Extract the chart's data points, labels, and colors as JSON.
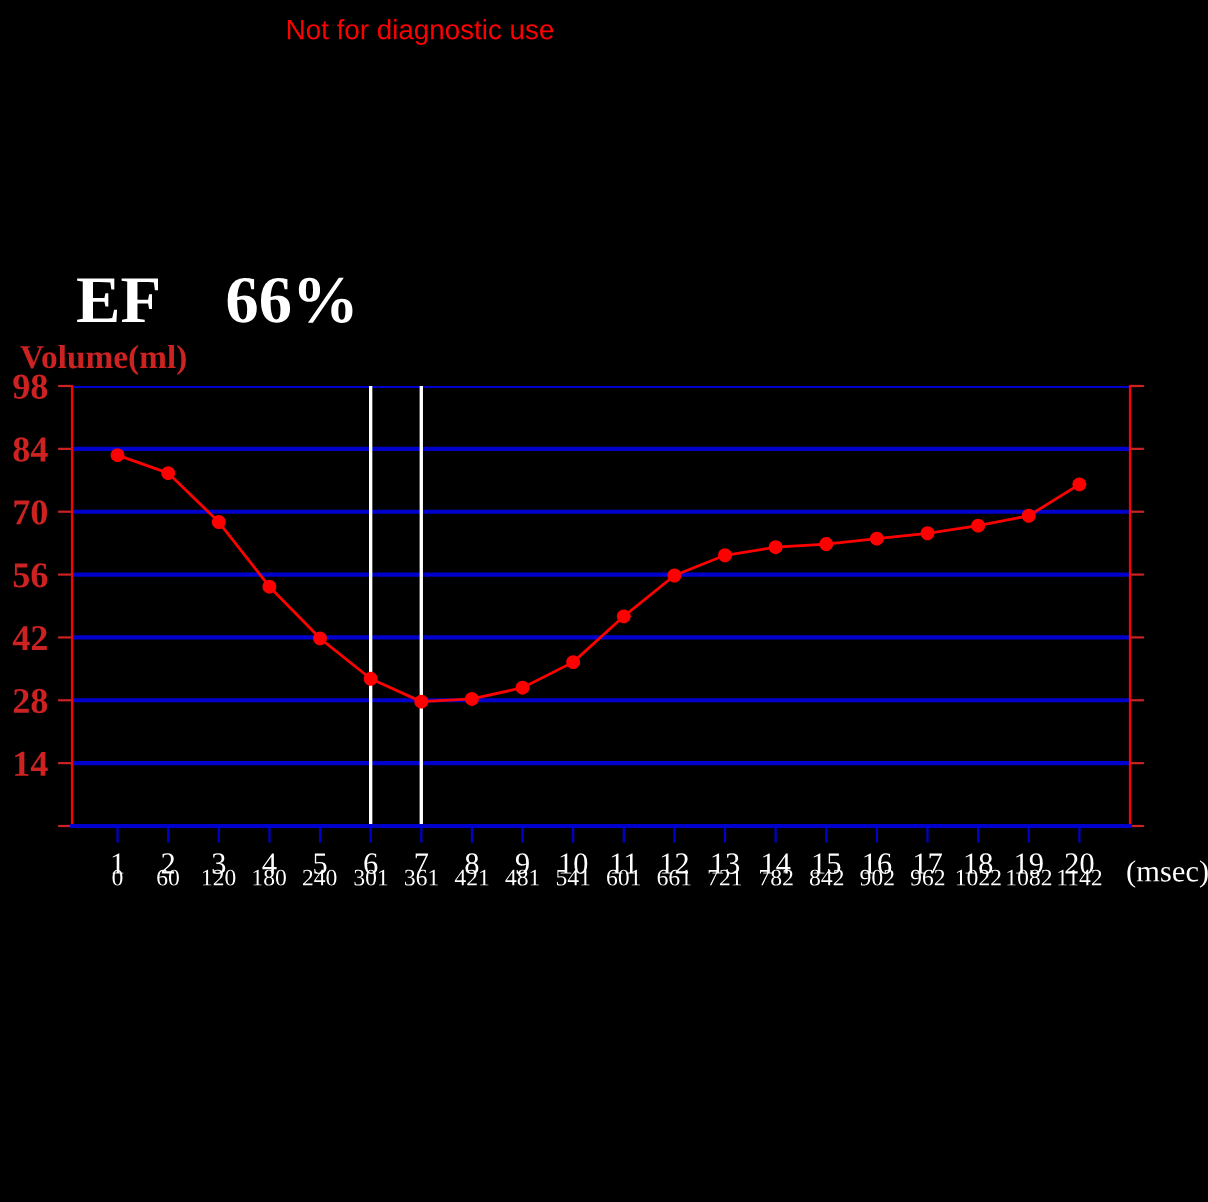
{
  "chart_data": {
    "type": "line",
    "title": "EF    66%",
    "ylabel": "Volume(ml)",
    "x2label": "(msec)",
    "annotations": [
      "Not for diagnostic use"
    ],
    "x": [
      1,
      2,
      3,
      4,
      5,
      6,
      7,
      8,
      9,
      10,
      11,
      12,
      13,
      14,
      15,
      16,
      17,
      18,
      19,
      20
    ],
    "series": [
      {
        "color": "#ff0000",
        "values": [
          82.6,
          78.6,
          67.7,
          53.3,
          41.8,
          32.8,
          27.7,
          28.3,
          30.8,
          36.5,
          46.7,
          55.8,
          60.3,
          62.1,
          62.8,
          64.0,
          65.2,
          66.9,
          69.1,
          76.1
        ]
      }
    ],
    "xlim": [
      0.1,
      21
    ],
    "xticks": [
      1,
      2,
      3,
      4,
      5,
      6,
      7,
      8,
      9,
      10,
      11,
      12,
      13,
      14,
      15,
      16,
      17,
      18,
      19,
      20
    ],
    "x2lim": [
      -54,
      1202
    ],
    "x2ticks": [
      0,
      60,
      120,
      180,
      240,
      301,
      361,
      421,
      481,
      541,
      601,
      661,
      721,
      782,
      842,
      902,
      962,
      1022,
      1082,
      1142
    ],
    "ylim": [
      0,
      98
    ],
    "yticks": [
      {
        "value": 0,
        "label": null
      },
      14,
      28,
      42,
      56,
      70,
      84,
      98
    ],
    "ref_lines": [
      {
        "axis": "x",
        "value": 6,
        "color": "#ffffff",
        "line_style": "solid"
      },
      {
        "axis": "x",
        "value": 7,
        "color": "#ffffff",
        "line_style": "solid"
      }
    ],
    "grid": "y",
    "marker": "circle",
    "line_style": "solid"
  }
}
